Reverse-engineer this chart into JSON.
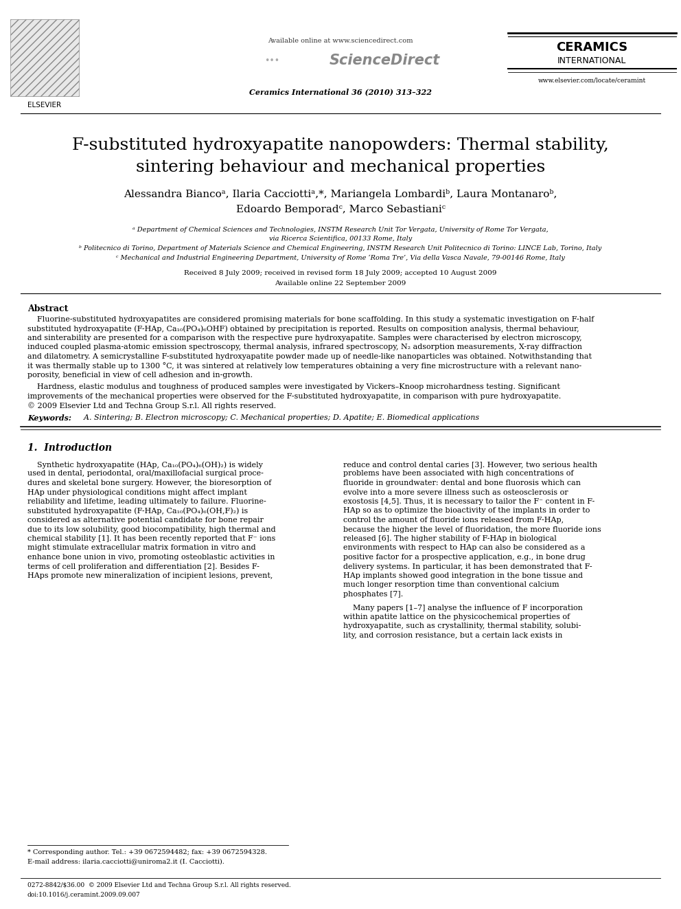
{
  "bg_color": "#ffffff",
  "page_width": 9.92,
  "page_height": 13.23,
  "dpi": 100,
  "header": {
    "available_online": "Available online at www.sciencedirect.com",
    "journal_info": "Ceramics International 36 (2010) 313–322",
    "ceramics_line1": "CERAMICS",
    "ceramics_line2": "INTERNATIONAL",
    "website": "www.elsevier.com/locate/ceramint",
    "elsevier_text": "ELSEVIER"
  },
  "title_line1": "F-substituted hydroxyapatite nanopowders: Thermal stability,",
  "title_line2": "sintering behaviour and mechanical properties",
  "author_line1": "Alessandra Biancoᵃ, Ilaria Cacciottiᵃ,*, Mariangela Lombardiᵇ, Laura Montanaroᵇ,",
  "author_line2": "Edoardo Bemporadᶜ, Marco Sebastianiᶜ",
  "affil_a1": "ᵃ Department of Chemical Sciences and Technologies, INSTM Research Unit Tor Vergata, University of Rome Tor Vergata,",
  "affil_a2": "via Ricerca Scientifica, 00133 Rome, Italy",
  "affil_b": "ᵇ Politecnico di Torino, Department of Materials Science and Chemical Engineering, INSTM Research Unit Politecnico di Torino: LINCE Lab, Torino, Italy",
  "affil_c": "ᶜ Mechanical and Industrial Engineering Department, University of Rome ‘Roma Tre’, Via della Vasca Navale, 79-00146 Rome, Italy",
  "dates1": "Received 8 July 2009; received in revised form 18 July 2009; accepted 10 August 2009",
  "dates2": "Available online 22 September 2009",
  "abstract_title": "Abstract",
  "abstract_body1": "Fluorine-substituted hydroxyapatites are considered promising materials for bone scaffolding. In this study a systematic investigation on F-half substituted hydroxyapatite (F-HAp, Ca₁₀(PO₄)₆OHF) obtained by precipitation is reported. Results on composition analysis, thermal behaviour, and sinterability are presented for a comparison with the respective pure hydroxyapatite. Samples were characterised by electron microscopy, induced coupled plasma-atomic emission spectroscopy, thermal analysis, infrared spectroscopy, N₂ adsorption measurements, X-ray diffraction and dilatometry. A semicrystalline F-substituted hydroxyapatite powder made up of needle-like nanoparticles was obtained. Notwithstanding that it was thermally stable up to 1300 °C, it was sintered at relatively low temperatures obtaining a very fine microstructure with a relevant nano-porosity, beneficial in view of cell adhesion and in-growth.",
  "abstract_body2": "Hardness, elastic modulus and toughness of produced samples were investigated by Vickers–Knoop microhardness testing. Significant improvements of the mechanical properties were observed for the F-substituted hydroxyapatite, in comparison with pure hydroxyapatite. © 2009 Elsevier Ltd and Techna Group S.r.l. All rights reserved.",
  "keywords_bold": "Keywords:",
  "keywords_rest": "  A. Sintering; B. Electron microscopy; C. Mechanical properties; D. Apatite; E. Biomedical applications",
  "intro_title": "1.  Introduction",
  "intro_left": "    Synthetic hydroxyapatite (HAp, Ca₁₀(PO₄)₆(OH)₂) is widely used in dental, periodontal, oral/maxillofacial surgical procedures and skeletal bone surgery. However, the bioresorption of HAp under physiological conditions might affect implant reliability and lifetime, leading ultimately to failure. Fluorine-substituted hydroxyapatite (F-HAp, Ca₁₀(PO₄)₆(OH,F)₂) is considered as alternative potential candidate for bone repair due to its low solubility, good biocompatibility, high thermal and chemical stability [1]. It has been recently reported that F⁻ ions might stimulate extracellular matrix formation in vitro and enhance bone union in vivo, promoting osteoblastic activities in terms of cell proliferation and differentiation [2]. Besides F-HAps promote new mineralization of incipient lesions, prevent,",
  "intro_right1": "reduce and control dental caries [3]. However, two serious health problems have been associated with high concentrations of fluoride in groundwater: dental and bone fluorosis which can evolve into a more severe illness such as osteosclerosis or exostosis [4,5]. Thus, it is necessary to tailor the F⁻ content in F-HAp so as to optimize the bioactivity of the implants in order to control the amount of fluoride ions released from F-HAp, because the higher the level of fluoridation, the more fluoride ions released [6]. The higher stability of F-HAp in biological environments with respect to HAp can also be considered as a positive factor for a prospective application, e.g., in bone drug delivery systems. In particular, it has been demonstrated that F-HAp implants showed good integration in the bone tissue and much longer resorption time than conventional calcium phosphates [7].",
  "intro_right2": "    Many papers [1–7] analyse the influence of F incorporation within apatite lattice on the physicochemical properties of hydroxyapatite, such as crystallinity, thermal stability, solubility, and corrosion resistance, but a certain lack exists in",
  "footnote1": "* Corresponding author. Tel.: +39 0672594482; fax: +39 0672594328.",
  "footnote2": "E-mail address: ilaria.cacciotti@uniroma2.it (I. Cacciotti).",
  "footer1": "0272-8842/$36.00  © 2009 Elsevier Ltd and Techna Group S.r.l. All rights reserved.",
  "footer2": "doi:10.1016/j.ceramint.2009.09.007"
}
